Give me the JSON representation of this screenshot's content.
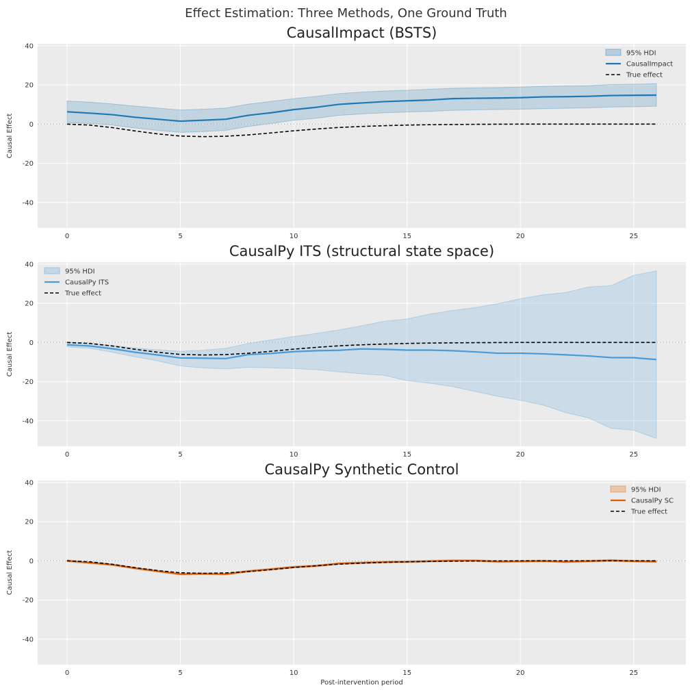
{
  "figure_title": "Effect Estimation: Three Methods, One Ground Truth",
  "colors": {
    "axes_bg": "#ebebeb",
    "grid": "#ffffff",
    "truth": "#000000",
    "zero_line": "#aaaaaa"
  },
  "chart_data": [
    {
      "type": "line",
      "title": "CausalImpact (BSTS)",
      "xlabel": "",
      "ylabel": "Causal Effect",
      "xlim": [
        -1.3,
        27.3
      ],
      "ylim": [
        -53,
        41
      ],
      "xticks": [
        0,
        5,
        10,
        15,
        20,
        25
      ],
      "yticks": [
        -40,
        -20,
        0,
        20,
        40
      ],
      "legend_position": "top-right",
      "x": [
        0,
        1,
        2,
        3,
        4,
        5,
        6,
        7,
        8,
        9,
        10,
        11,
        12,
        13,
        14,
        15,
        16,
        17,
        18,
        19,
        20,
        21,
        22,
        23,
        24,
        25,
        26
      ],
      "series": [
        {
          "name": "CausalImpact",
          "kind": "line",
          "color": "#1f77b4",
          "values": [
            6.3,
            5.6,
            4.8,
            3.5,
            2.5,
            1.5,
            2.0,
            2.5,
            4.5,
            5.8,
            7.4,
            8.6,
            10.1,
            10.8,
            11.5,
            11.9,
            12.3,
            13.0,
            13.2,
            13.3,
            13.5,
            13.9,
            14.0,
            14.2,
            14.6,
            14.7,
            14.8
          ]
        },
        {
          "name": "True effect",
          "kind": "dashed",
          "color": "#000000",
          "values": [
            0,
            -0.5,
            -1.8,
            -3.5,
            -5.0,
            -6.1,
            -6.4,
            -6.2,
            -5.5,
            -4.5,
            -3.4,
            -2.5,
            -1.7,
            -1.2,
            -0.8,
            -0.5,
            -0.3,
            -0.2,
            -0.1,
            -0.05,
            0,
            0,
            0,
            0,
            0,
            0,
            0
          ]
        }
      ],
      "band": {
        "name": "95% HDI",
        "color": "#1f77b4",
        "lower": [
          0.8,
          0.3,
          -0.5,
          -2.0,
          -3.2,
          -4.2,
          -3.8,
          -3.2,
          -1.2,
          0.3,
          2.0,
          3.0,
          4.5,
          5.2,
          5.8,
          6.2,
          6.5,
          7.0,
          7.3,
          7.5,
          7.6,
          7.9,
          8.1,
          8.3,
          8.7,
          8.9,
          9.1
        ],
        "upper": [
          11.8,
          11.2,
          10.3,
          9.2,
          8.2,
          7.2,
          7.6,
          8.2,
          10.2,
          11.6,
          13.0,
          14.2,
          15.6,
          16.3,
          16.9,
          17.3,
          17.8,
          18.3,
          18.5,
          18.7,
          18.9,
          19.3,
          19.5,
          19.7,
          20.2,
          20.4,
          20.6
        ]
      },
      "legend": [
        "95% HDI",
        "CausalImpact",
        "True effect"
      ]
    },
    {
      "type": "line",
      "title": "CausalPy ITS (structural state space)",
      "xlabel": "",
      "ylabel": "Causal Effect",
      "xlim": [
        -1.3,
        27.3
      ],
      "ylim": [
        -53,
        41
      ],
      "xticks": [
        0,
        5,
        10,
        15,
        20,
        25
      ],
      "yticks": [
        -40,
        -20,
        0,
        20,
        40
      ],
      "legend_position": "top-left",
      "x": [
        0,
        1,
        2,
        3,
        4,
        5,
        6,
        7,
        8,
        9,
        10,
        11,
        12,
        13,
        14,
        15,
        16,
        17,
        18,
        19,
        20,
        21,
        22,
        23,
        24,
        25,
        26
      ],
      "series": [
        {
          "name": "CausalPy ITS",
          "kind": "line",
          "color": "#4a9ad8",
          "values": [
            -1.2,
            -1.8,
            -3.2,
            -5.0,
            -6.4,
            -7.9,
            -8.0,
            -8.2,
            -6.2,
            -5.6,
            -4.7,
            -4.2,
            -4.0,
            -3.3,
            -3.5,
            -3.9,
            -3.9,
            -4.2,
            -4.8,
            -5.5,
            -5.5,
            -5.8,
            -6.3,
            -6.9,
            -7.7,
            -7.8,
            -8.7
          ]
        },
        {
          "name": "True effect",
          "kind": "dashed",
          "color": "#000000",
          "values": [
            0,
            -0.5,
            -1.8,
            -3.5,
            -5.0,
            -6.1,
            -6.4,
            -6.2,
            -5.5,
            -4.5,
            -3.4,
            -2.5,
            -1.7,
            -1.2,
            -0.8,
            -0.5,
            -0.3,
            -0.2,
            -0.1,
            -0.05,
            0,
            0,
            0,
            0,
            0,
            0,
            0
          ]
        }
      ],
      "band": {
        "name": "95% HDI",
        "color": "#4a9ad8",
        "lower": [
          -2.2,
          -3.0,
          -5.0,
          -7.3,
          -9.4,
          -12.0,
          -13.0,
          -13.5,
          -12.7,
          -13.0,
          -13.3,
          -13.9,
          -15.0,
          -16.0,
          -16.8,
          -19.5,
          -20.8,
          -22.5,
          -25.0,
          -27.5,
          -29.5,
          -32.0,
          -35.8,
          -38.5,
          -43.8,
          -44.8,
          -49.0
        ]
      },
      "band_upper": [
        0.2,
        -0.4,
        -1.6,
        -2.8,
        -3.8,
        -4.5,
        -4.0,
        -3.0,
        -0.5,
        1.3,
        3.0,
        4.6,
        6.4,
        8.5,
        10.8,
        12.0,
        14.5,
        16.3,
        17.8,
        19.8,
        22.3,
        24.3,
        25.5,
        28.3,
        29.0,
        34.3,
        36.5
      ],
      "legend": [
        "95% HDI",
        "CausalPy ITS",
        "True effect"
      ]
    },
    {
      "type": "line",
      "title": "CausalPy Synthetic Control",
      "xlabel": "Post-intervention period",
      "ylabel": "Causal Effect",
      "xlim": [
        -1.3,
        27.3
      ],
      "ylim": [
        -53,
        41
      ],
      "xticks": [
        0,
        5,
        10,
        15,
        20,
        25
      ],
      "yticks": [
        -40,
        -20,
        0,
        20,
        40
      ],
      "legend_position": "top-right",
      "x": [
        0,
        1,
        2,
        3,
        4,
        5,
        6,
        7,
        8,
        9,
        10,
        11,
        12,
        13,
        14,
        15,
        16,
        17,
        18,
        19,
        20,
        21,
        22,
        23,
        24,
        25,
        26
      ],
      "series": [
        {
          "name": "CausalPy SC",
          "kind": "line",
          "color": "#d95f02",
          "values": [
            0,
            -1.0,
            -2.0,
            -3.8,
            -5.3,
            -6.8,
            -6.6,
            -6.8,
            -5.3,
            -4.3,
            -3.2,
            -2.6,
            -1.4,
            -1.0,
            -0.6,
            -0.5,
            -0.2,
            0.1,
            0.1,
            -0.4,
            -0.3,
            -0.1,
            -0.5,
            -0.2,
            0.2,
            -0.2,
            -0.4
          ]
        },
        {
          "name": "True effect",
          "kind": "dashed",
          "color": "#000000",
          "values": [
            0,
            -0.5,
            -1.8,
            -3.5,
            -5.0,
            -6.1,
            -6.4,
            -6.2,
            -5.5,
            -4.5,
            -3.4,
            -2.5,
            -1.7,
            -1.2,
            -0.8,
            -0.5,
            -0.3,
            -0.2,
            -0.1,
            -0.05,
            0,
            0,
            0,
            0,
            0,
            0,
            0
          ]
        }
      ],
      "band": {
        "name": "95% HDI",
        "color": "#d95f02",
        "lower": [
          -0.5,
          -1.5,
          -2.5,
          -4.3,
          -5.8,
          -7.3,
          -7.1,
          -7.3,
          -5.8,
          -4.8,
          -3.7,
          -3.1,
          -1.9,
          -1.5,
          -1.1,
          -1.0,
          -0.7,
          -0.4,
          -0.4,
          -0.9,
          -0.8,
          -0.6,
          -1.0,
          -0.7,
          -0.3,
          -0.7,
          -0.9
        ]
      },
      "band_upper": [
        0.5,
        -0.5,
        -1.5,
        -3.3,
        -4.8,
        -6.3,
        -6.1,
        -6.3,
        -4.8,
        -3.8,
        -2.7,
        -2.1,
        -0.9,
        -0.5,
        -0.1,
        0.0,
        0.3,
        0.6,
        0.6,
        0.1,
        0.2,
        0.4,
        0.0,
        0.3,
        0.7,
        0.3,
        0.1
      ],
      "legend": [
        "95% HDI",
        "CausalPy SC",
        "True effect"
      ]
    }
  ]
}
